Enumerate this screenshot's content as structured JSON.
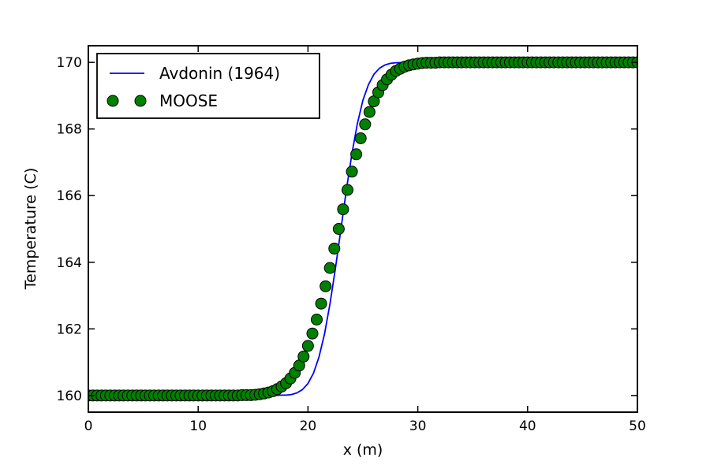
{
  "figure": {
    "background": "#ffffff",
    "plot_background": "#ffffff"
  },
  "chart_data": {
    "type": "line",
    "title": "",
    "xlabel": "x (m)",
    "ylabel": "Temperature (C)",
    "xlim": [
      0,
      50
    ],
    "ylim": [
      159.5,
      170.5
    ],
    "xticks": [
      0,
      10,
      20,
      30,
      40,
      50
    ],
    "yticks": [
      160,
      162,
      164,
      166,
      168,
      170
    ],
    "grid": false,
    "tick_style": "inward-all-sides",
    "legend": {
      "position": "upper-left",
      "border_color": "#000000",
      "background": "#ffffff",
      "entries": [
        {
          "label": "Avdonin (1964)",
          "type": "line",
          "color": "#0000ff"
        },
        {
          "label": "MOOSE",
          "type": "marker",
          "color": "#008000",
          "edge_color": "#000000"
        }
      ]
    },
    "series": [
      {
        "name": "Avdonin (1964)",
        "type": "line",
        "color": "#0000ff",
        "line_width": 1.8,
        "x": [
          0,
          15,
          16,
          17,
          17.5,
          18,
          18.5,
          19,
          19.5,
          20,
          20.5,
          21,
          21.5,
          22,
          22.5,
          23,
          23.5,
          24,
          24.5,
          25,
          25.5,
          26,
          26.5,
          27,
          27.5,
          28,
          29,
          30,
          32,
          50
        ],
        "y": [
          160.0,
          160.0,
          160.0,
          160.0,
          160.01,
          160.01,
          160.03,
          160.08,
          160.18,
          160.36,
          160.67,
          161.15,
          161.84,
          162.74,
          163.82,
          165.0,
          166.18,
          167.26,
          168.16,
          168.86,
          169.33,
          169.64,
          169.82,
          169.92,
          169.97,
          169.99,
          170.0,
          170.0,
          170.0,
          170.0
        ]
      },
      {
        "name": "MOOSE",
        "type": "scatter",
        "color": "#008000",
        "edge_color": "#000000",
        "marker": "circle",
        "marker_radius_px": 7,
        "x_start": 0,
        "x_step": 0.4,
        "y": [
          160.0,
          160.0,
          160.0,
          160.0,
          160.0,
          160.0,
          160.0,
          160.0,
          160.0,
          160.0,
          160.0,
          160.0,
          160.0,
          160.0,
          160.0,
          160.0,
          160.0,
          160.0,
          160.0,
          160.0,
          160.0,
          160.0,
          160.0,
          160.0,
          160.0,
          160.0,
          160.0,
          160.0,
          160.0,
          160.0,
          160.0,
          160.0,
          160.0,
          160.0,
          160.0,
          160.01,
          160.01,
          160.01,
          160.02,
          160.04,
          160.06,
          160.09,
          160.13,
          160.19,
          160.27,
          160.37,
          160.51,
          160.68,
          160.9,
          161.17,
          161.49,
          161.86,
          162.28,
          162.76,
          163.28,
          163.83,
          164.41,
          165.0,
          165.59,
          166.17,
          166.72,
          167.24,
          167.72,
          168.14,
          168.51,
          168.83,
          169.1,
          169.32,
          169.49,
          169.63,
          169.74,
          169.81,
          169.87,
          169.91,
          169.94,
          169.96,
          169.98,
          169.99,
          169.99,
          169.99,
          170.0,
          170.0,
          170.0,
          170.0,
          170.0,
          170.0,
          170.0,
          170.0,
          170.0,
          170.0,
          170.0,
          170.0,
          170.0,
          170.0,
          170.0,
          170.0,
          170.0,
          170.0,
          170.0,
          170.0,
          170.0,
          170.0,
          170.0,
          170.0,
          170.0,
          170.0,
          170.0,
          170.0,
          170.0,
          170.0,
          170.0,
          170.0,
          170.0,
          170.0,
          170.0,
          170.0,
          170.0,
          170.0,
          170.0,
          170.0,
          170.0,
          170.0,
          170.0,
          170.0,
          170.0,
          170.0
        ]
      }
    ]
  }
}
